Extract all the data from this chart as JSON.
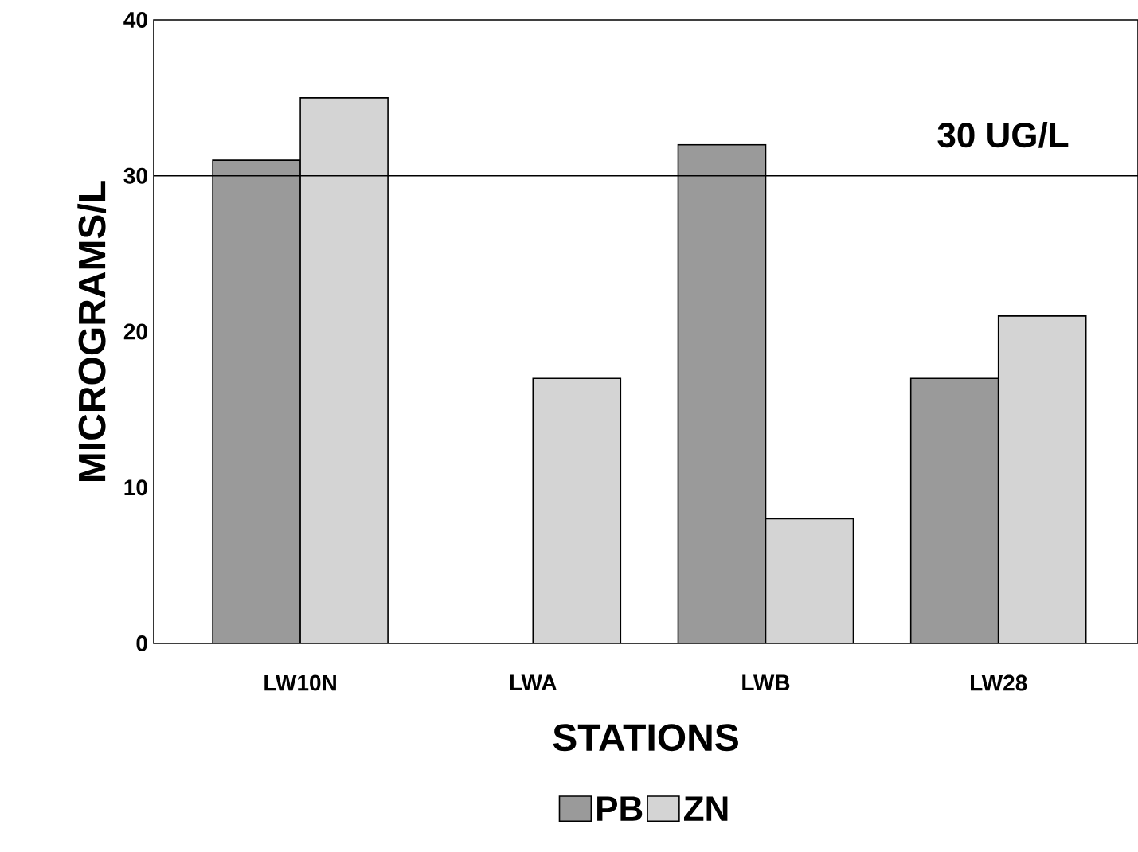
{
  "chart_data": {
    "type": "bar",
    "xlabel": "STATIONS",
    "ylabel": "MICROGRAMS/L",
    "categories": [
      "LW10N",
      "LWA",
      "LWB",
      "LW28"
    ],
    "series": [
      {
        "name": "PB",
        "color": "#9a9a9a",
        "values": [
          31,
          null,
          32,
          17
        ]
      },
      {
        "name": "ZN",
        "color": "#d4d4d4",
        "values": [
          35,
          17,
          8,
          21
        ]
      }
    ],
    "ylim": [
      0,
      40
    ],
    "yticks": [
      0,
      10,
      20,
      30,
      40
    ],
    "grid": false,
    "legend": "bottom",
    "ref_lines": [
      {
        "axis": "y",
        "value": 30,
        "label": "30 UG/L",
        "color": "#000000"
      }
    ]
  }
}
